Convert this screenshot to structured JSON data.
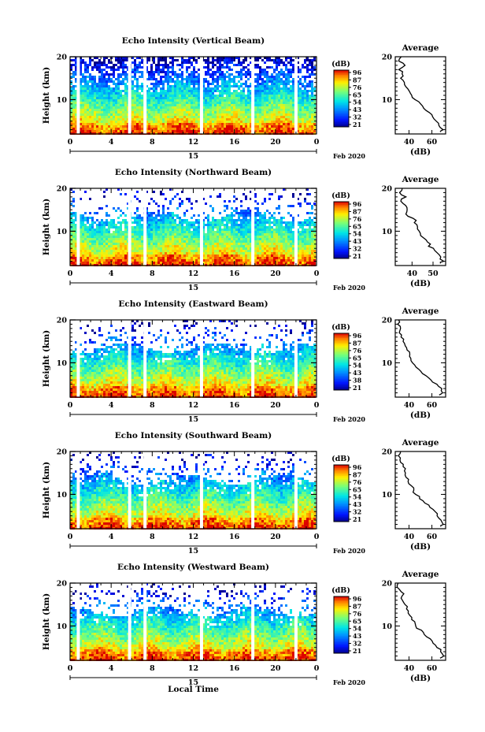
{
  "chart_data": [
    {
      "type": "heatmap",
      "title": "Echo Intensity (Vertical Beam)",
      "ylabel": "Height (km)",
      "yticks": [
        "20",
        "10"
      ],
      "xticks": [
        "0",
        "4",
        "8",
        "12",
        "16",
        "20",
        "0"
      ],
      "xlim": [
        0,
        24
      ],
      "ylim": [
        2,
        20
      ],
      "date_day": "15",
      "date_monthyear": "Feb 2020",
      "colorbar": {
        "label": "(dB)",
        "ticks": [
          "96",
          "87",
          "76",
          "65",
          "54",
          "43",
          "32",
          "21"
        ],
        "range": [
          21,
          96
        ]
      },
      "gaps_hours": [
        0.8,
        5.8,
        7.3,
        12.8,
        17.8,
        22.0
      ],
      "profile": {
        "title": "Average",
        "xlabel": "(dB)",
        "xticks": [
          "40",
          "60"
        ],
        "xlim": [
          28,
          72
        ],
        "yticks": [
          "20",
          "10"
        ],
        "heights": [
          20,
          19,
          18,
          17,
          16,
          15,
          14,
          13,
          12,
          11,
          10,
          9,
          8,
          7,
          6,
          5,
          4,
          3,
          2.5
        ],
        "values": [
          33,
          31,
          36,
          32,
          34,
          33,
          36,
          37,
          40,
          42,
          45,
          50,
          53,
          57,
          60,
          64,
          67,
          70,
          68
        ]
      }
    },
    {
      "type": "heatmap",
      "title": "Echo Intensity (Northward Beam)",
      "ylabel": "Height (km)",
      "yticks": [
        "20",
        "10"
      ],
      "xticks": [
        "0",
        "4",
        "8",
        "12",
        "16",
        "20",
        "0"
      ],
      "xlim": [
        0,
        24
      ],
      "ylim": [
        2,
        20
      ],
      "date_day": "15",
      "date_monthyear": "Feb 2020",
      "colorbar": {
        "label": "(dB)",
        "ticks": [
          "96",
          "87",
          "76",
          "65",
          "54",
          "43",
          "32",
          "21"
        ],
        "range": [
          21,
          96
        ]
      },
      "gaps_hours": [
        0.8,
        5.8,
        7.3,
        12.8,
        17.8,
        22.0
      ],
      "profile": {
        "title": "Average",
        "xlabel": "(dB)",
        "xticks": [
          "40",
          "50"
        ],
        "xlim": [
          32,
          56
        ],
        "yticks": [
          "20",
          "10"
        ],
        "heights": [
          20,
          19,
          18,
          17,
          16,
          15,
          14,
          13,
          12,
          11,
          10,
          9,
          8,
          7,
          6,
          5,
          4,
          3,
          2.5
        ],
        "values": [
          35,
          34,
          37,
          35,
          36,
          38,
          38,
          40,
          41,
          42,
          43,
          45,
          46,
          48,
          50,
          52,
          54,
          55,
          53
        ]
      }
    },
    {
      "type": "heatmap",
      "title": "Echo Intensity (Eastward Beam)",
      "ylabel": "Height (km)",
      "yticks": [
        "20",
        "10"
      ],
      "xticks": [
        "0",
        "4",
        "8",
        "12",
        "16",
        "20",
        "0"
      ],
      "xlim": [
        0,
        24
      ],
      "ylim": [
        2,
        20
      ],
      "date_day": "15",
      "date_monthyear": "Feb 2020",
      "colorbar": {
        "label": "(dB)",
        "ticks": [
          "96",
          "87",
          "76",
          "65",
          "54",
          "43",
          "38",
          "21"
        ],
        "range": [
          21,
          96
        ]
      },
      "gaps_hours": [
        0.8,
        5.8,
        7.3,
        12.8,
        17.8,
        22.0
      ],
      "profile": {
        "title": "Average",
        "xlabel": "(dB)",
        "xticks": [
          "40",
          "60"
        ],
        "xlim": [
          28,
          72
        ],
        "yticks": [
          "20",
          "10"
        ],
        "heights": [
          20,
          19,
          18,
          17,
          16,
          15,
          14,
          13,
          12,
          11,
          10,
          9,
          8,
          7,
          6,
          5,
          4,
          3,
          2.5
        ],
        "values": [
          32,
          30,
          33,
          31,
          33,
          35,
          36,
          38,
          40,
          42,
          44,
          47,
          50,
          55,
          60,
          64,
          68,
          70,
          67
        ]
      }
    },
    {
      "type": "heatmap",
      "title": "Echo Intensity (Southward Beam)",
      "ylabel": "Height (km)",
      "yticks": [
        "20",
        "10"
      ],
      "xticks": [
        "0",
        "4",
        "8",
        "12",
        "16",
        "20",
        "0"
      ],
      "xlim": [
        0,
        24
      ],
      "ylim": [
        2,
        20
      ],
      "date_day": "15",
      "date_monthyear": "Feb 2020",
      "colorbar": {
        "label": "(dB)",
        "ticks": [
          "96",
          "87",
          "76",
          "65",
          "54",
          "43",
          "32",
          "21"
        ],
        "range": [
          21,
          96
        ]
      },
      "gaps_hours": [
        0.8,
        5.8,
        7.3,
        12.8,
        17.8,
        22.0
      ],
      "profile": {
        "title": "Average",
        "xlabel": "(dB)",
        "xticks": [
          "40",
          "60"
        ],
        "xlim": [
          28,
          72
        ],
        "yticks": [
          "20",
          "10"
        ],
        "heights": [
          20,
          19,
          18,
          17,
          16,
          15,
          14,
          13,
          12,
          11,
          10,
          9,
          8,
          7,
          6,
          5,
          4,
          3,
          2.5
        ],
        "values": [
          32,
          30,
          33,
          35,
          36,
          37,
          38,
          40,
          42,
          44,
          46,
          50,
          54,
          58,
          62,
          65,
          68,
          70,
          68
        ]
      }
    },
    {
      "type": "heatmap",
      "title": "Echo Intensity (Westward Beam)",
      "ylabel": "Height (km)",
      "yticks": [
        "20",
        "10"
      ],
      "xticks": [
        "0",
        "4",
        "8",
        "12",
        "16",
        "20",
        "0"
      ],
      "xlim": [
        0,
        24
      ],
      "ylim": [
        2,
        20
      ],
      "date_day": "15",
      "date_monthyear": "Feb 2020",
      "colorbar": {
        "label": "(dB)",
        "ticks": [
          "96",
          "87",
          "76",
          "65",
          "54",
          "43",
          "32",
          "21"
        ],
        "range": [
          21,
          96
        ]
      },
      "gaps_hours": [
        0.8,
        5.8,
        7.3,
        12.8,
        17.8,
        22.0
      ],
      "profile": {
        "title": "Average",
        "xlabel": "(dB)",
        "xticks": [
          "40",
          "60"
        ],
        "xlim": [
          28,
          72
        ],
        "yticks": [
          "20",
          "10"
        ],
        "heights": [
          20,
          19,
          18,
          17,
          16,
          15,
          14,
          13,
          12,
          11,
          10,
          9,
          8,
          7,
          6,
          5,
          4,
          3,
          2.5
        ],
        "values": [
          31,
          30,
          33,
          35,
          34,
          37,
          38,
          40,
          42,
          44,
          46,
          50,
          54,
          58,
          62,
          65,
          68,
          70,
          68
        ]
      }
    }
  ],
  "xlabel": "Local Time"
}
